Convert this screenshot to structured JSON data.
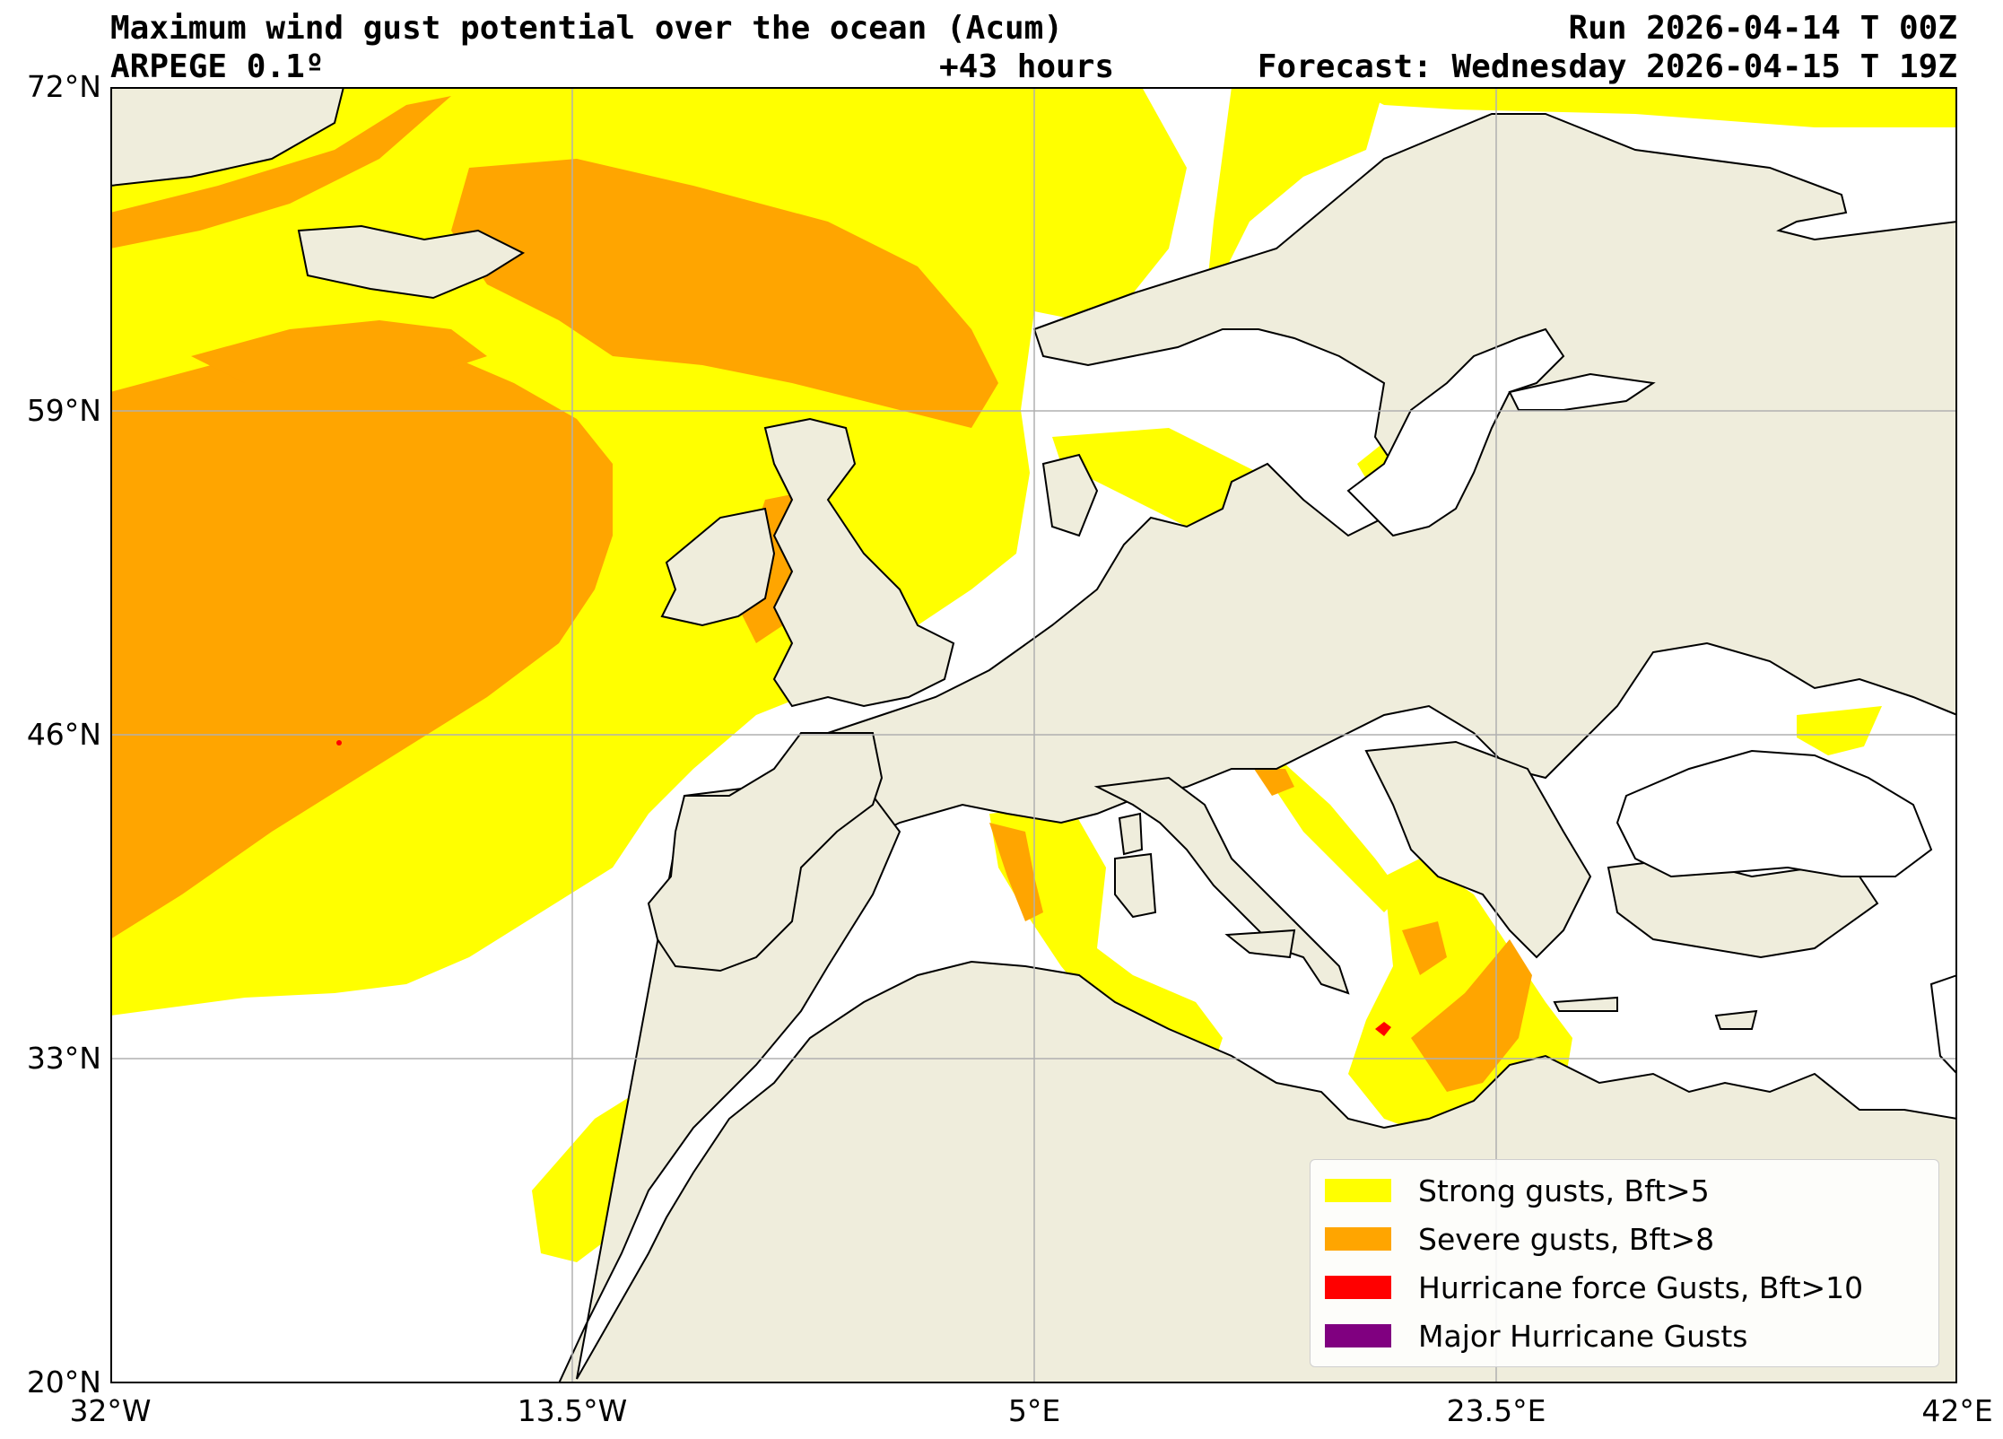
{
  "header": {
    "title": "Maximum wind gust potential over the ocean (Acum)",
    "run": "Run 2026-04-14 T 00Z",
    "model": "ARPEGE 0.1º",
    "lead_time": "+43 hours",
    "forecast": "Forecast: Wednesday 2026-04-15 T 19Z"
  },
  "map": {
    "lon_range": [
      -32,
      42
    ],
    "lat_range": [
      20,
      72
    ],
    "lat_ticks": [
      {
        "value": 72,
        "label": "72°N"
      },
      {
        "value": 59,
        "label": "59°N"
      },
      {
        "value": 46,
        "label": "46°N"
      },
      {
        "value": 33,
        "label": "33°N"
      },
      {
        "value": 20,
        "label": "20°N"
      }
    ],
    "lon_ticks": [
      {
        "value": -32,
        "label": "32°W"
      },
      {
        "value": -13.5,
        "label": "13.5°W"
      },
      {
        "value": 5,
        "label": "5°E"
      },
      {
        "value": 23.5,
        "label": "23.5°E"
      },
      {
        "value": 42,
        "label": "42°E"
      }
    ],
    "grid": true,
    "colors": {
      "land": "#efeddc",
      "sea": "#ffffff",
      "coast": "#000000",
      "grid": "#b0b0b0"
    }
  },
  "legend": {
    "position": "lower-right",
    "items": [
      {
        "label": "Strong gusts, Bft>5",
        "color": "#ffff00"
      },
      {
        "label": "Severe gusts, Bft>8",
        "color": "#ffa500"
      },
      {
        "label": "Hurricane force Gusts, Bft>10",
        "color": "#ff0000"
      },
      {
        "label": "Major Hurricane Gusts",
        "color": "#800080"
      }
    ]
  }
}
